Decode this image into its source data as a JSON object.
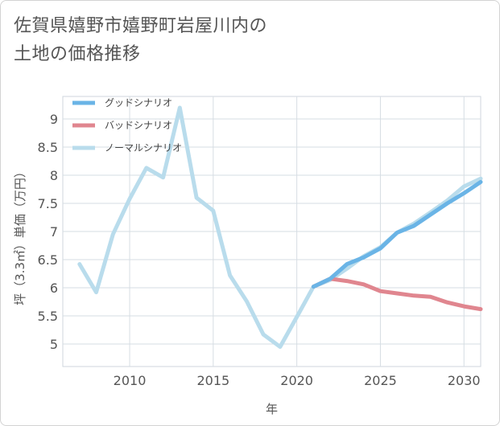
{
  "title_lines": [
    "佐賀県嬉野市嬉野町岩屋川内の",
    "土地の価格推移"
  ],
  "chart_data": {
    "type": "line",
    "xlabel": "年",
    "ylabel": "坪（3.3㎡）単価（万円）",
    "xlim": [
      2006,
      2031
    ],
    "ylim": [
      4.6,
      9.4
    ],
    "xticks": [
      2010,
      2015,
      2020,
      2025,
      2030
    ],
    "yticks": [
      5,
      5.5,
      6,
      6.5,
      7,
      7.5,
      8,
      8.5,
      9
    ],
    "ytick_labels": [
      "5",
      "5.5",
      "6",
      "6.5",
      "7",
      "7.5",
      "8",
      "8.5",
      "9"
    ],
    "grid": true,
    "legend_position": "top-left",
    "series": [
      {
        "name": "グッドシナリオ",
        "color": "#6ab4e6",
        "x": [
          2021,
          2022,
          2023,
          2024,
          2025,
          2026,
          2027,
          2028,
          2029,
          2030,
          2031
        ],
        "y": [
          6.02,
          6.16,
          6.42,
          6.54,
          6.7,
          6.98,
          7.1,
          7.3,
          7.5,
          7.68,
          7.88
        ]
      },
      {
        "name": "バッドシナリオ",
        "color": "#e0868f",
        "x": [
          2021,
          2022,
          2023,
          2024,
          2025,
          2026,
          2027,
          2028,
          2029,
          2030,
          2031
        ],
        "y": [
          6.02,
          6.16,
          6.12,
          6.06,
          5.94,
          5.9,
          5.86,
          5.84,
          5.74,
          5.67,
          5.62
        ]
      },
      {
        "name": "ノーマルシナリオ",
        "color": "#b9dcec",
        "x": [
          2007,
          2008,
          2009,
          2010,
          2011,
          2012,
          2013,
          2014,
          2015,
          2016,
          2017,
          2018,
          2019,
          2020,
          2021,
          2022,
          2023,
          2024,
          2025,
          2026,
          2027,
          2028,
          2029,
          2030,
          2031
        ],
        "y": [
          6.42,
          5.92,
          6.95,
          7.58,
          8.13,
          7.96,
          9.2,
          7.6,
          7.37,
          6.22,
          5.76,
          5.17,
          4.95,
          5.48,
          6.02,
          6.14,
          6.34,
          6.56,
          6.72,
          6.98,
          7.14,
          7.34,
          7.55,
          7.8,
          7.94
        ]
      }
    ]
  }
}
